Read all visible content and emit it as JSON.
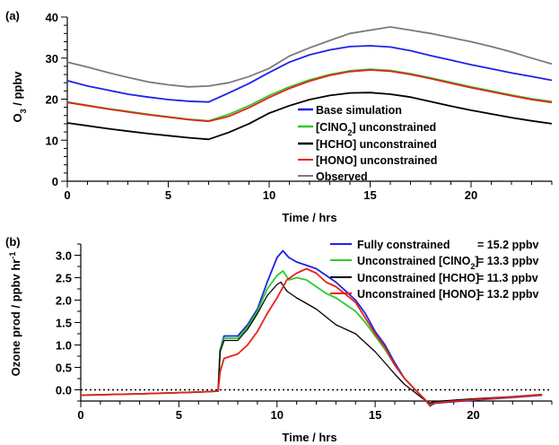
{
  "panels": {
    "a": {
      "label": "(a)"
    },
    "b": {
      "label": "(b)"
    }
  },
  "chart_data": [
    {
      "type": "line",
      "panel_label": "(a)",
      "xlabel": "Time / hrs",
      "ylabel_parts": {
        "base": "O",
        "sub": "3",
        "rest": " / ppbv"
      },
      "xlim": [
        0,
        24
      ],
      "ylim": [
        0,
        40
      ],
      "xticks": [
        0,
        5,
        10,
        15,
        20
      ],
      "yticks": [
        0,
        10,
        20,
        30,
        40
      ],
      "legend_position": "lower-right",
      "grid": false,
      "series": [
        {
          "name": "Base simulation",
          "color": "#1f22e8",
          "points": [
            [
              0,
              24.5
            ],
            [
              1,
              23.2
            ],
            [
              2,
              22.2
            ],
            [
              3,
              21.2
            ],
            [
              4,
              20.5
            ],
            [
              5,
              19.9
            ],
            [
              6,
              19.5
            ],
            [
              7,
              19.3
            ],
            [
              8,
              21.5
            ],
            [
              9,
              23.8
            ],
            [
              10,
              26.5
            ],
            [
              11,
              29
            ],
            [
              12,
              30.8
            ],
            [
              13,
              32
            ],
            [
              14,
              32.8
            ],
            [
              15,
              33
            ],
            [
              16,
              32.7
            ],
            [
              17,
              31.8
            ],
            [
              18,
              30.6
            ],
            [
              19,
              29.5
            ],
            [
              20,
              28.4
            ],
            [
              21,
              27.4
            ],
            [
              22,
              26.4
            ],
            [
              23,
              25.5
            ],
            [
              24,
              24.6
            ]
          ]
        },
        {
          "name_parts": {
            "pre": "[ClNO",
            "sub": "2",
            "post": "] unconstrained"
          },
          "color": "#2ecb2e",
          "points": [
            [
              0,
              19.3
            ],
            [
              1,
              18.5
            ],
            [
              2,
              17.7
            ],
            [
              3,
              17
            ],
            [
              4,
              16.3
            ],
            [
              5,
              15.7
            ],
            [
              6,
              15.1
            ],
            [
              7,
              14.7
            ],
            [
              8,
              16.3
            ],
            [
              9,
              18.4
            ],
            [
              10,
              20.9
            ],
            [
              11,
              23
            ],
            [
              12,
              24.7
            ],
            [
              13,
              26
            ],
            [
              14,
              26.9
            ],
            [
              15,
              27.3
            ],
            [
              16,
              27
            ],
            [
              17,
              26.2
            ],
            [
              18,
              25.2
            ],
            [
              19,
              24.1
            ],
            [
              20,
              23
            ],
            [
              21,
              22
            ],
            [
              22,
              21
            ],
            [
              23,
              20.1
            ],
            [
              24,
              19.4
            ]
          ]
        },
        {
          "name": "[HCHO] unconstrained",
          "color": "#000000",
          "points": [
            [
              0,
              14.2
            ],
            [
              1,
              13.5
            ],
            [
              2,
              12.8
            ],
            [
              3,
              12.2
            ],
            [
              4,
              11.6
            ],
            [
              5,
              11.1
            ],
            [
              6,
              10.6
            ],
            [
              7,
              10.2
            ],
            [
              8,
              11.9
            ],
            [
              9,
              14
            ],
            [
              10,
              16.6
            ],
            [
              11,
              18.4
            ],
            [
              12,
              19.9
            ],
            [
              13,
              20.9
            ],
            [
              14,
              21.5
            ],
            [
              15,
              21.6
            ],
            [
              16,
              21.2
            ],
            [
              17,
              20.5
            ],
            [
              18,
              19.4
            ],
            [
              19,
              18.3
            ],
            [
              20,
              17.3
            ],
            [
              21,
              16.4
            ],
            [
              22,
              15.5
            ],
            [
              23,
              14.7
            ],
            [
              24,
              14
            ]
          ]
        },
        {
          "name": "[HONO] unconstrained",
          "color": "#e8211b",
          "points": [
            [
              0,
              19.2
            ],
            [
              1,
              18.4
            ],
            [
              2,
              17.6
            ],
            [
              3,
              16.9
            ],
            [
              4,
              16.2
            ],
            [
              5,
              15.6
            ],
            [
              6,
              15
            ],
            [
              7,
              14.6
            ],
            [
              8,
              15.8
            ],
            [
              9,
              17.9
            ],
            [
              10,
              20.4
            ],
            [
              11,
              22.6
            ],
            [
              12,
              24.4
            ],
            [
              13,
              25.8
            ],
            [
              14,
              26.7
            ],
            [
              15,
              27.1
            ],
            [
              16,
              26.8
            ],
            [
              17,
              26
            ],
            [
              18,
              25
            ],
            [
              19,
              23.9
            ],
            [
              20,
              22.8
            ],
            [
              21,
              21.8
            ],
            [
              22,
              20.8
            ],
            [
              23,
              19.9
            ],
            [
              24,
              19.2
            ]
          ]
        },
        {
          "name": "Observed",
          "color": "#7a7a7a",
          "points": [
            [
              0,
              29
            ],
            [
              1,
              27.8
            ],
            [
              2,
              26.5
            ],
            [
              3,
              25.3
            ],
            [
              4,
              24.2
            ],
            [
              5,
              23.5
            ],
            [
              6,
              23
            ],
            [
              7,
              23.2
            ],
            [
              8,
              24
            ],
            [
              9,
              25.5
            ],
            [
              10,
              27.5
            ],
            [
              11,
              30.5
            ],
            [
              12,
              32.5
            ],
            [
              13,
              34.3
            ],
            [
              14,
              36
            ],
            [
              15,
              36.8
            ],
            [
              16,
              37.6
            ],
            [
              17,
              36.8
            ],
            [
              18,
              36
            ],
            [
              19,
              35
            ],
            [
              20,
              34
            ],
            [
              21,
              32.8
            ],
            [
              22,
              31.5
            ],
            [
              23,
              30
            ],
            [
              24,
              28.6
            ]
          ]
        }
      ]
    },
    {
      "type": "line",
      "panel_label": "(b)",
      "xlabel": "Time / hrs",
      "ylabel_parts": {
        "base": "Ozone prod / ppbv hr",
        "sup": "-1"
      },
      "xlim": [
        0,
        24
      ],
      "ylim": [
        -0.25,
        3.25
      ],
      "xticks": [
        0,
        5,
        10,
        15,
        20
      ],
      "yticks": [
        0.0,
        0.5,
        1.0,
        1.5,
        2.0,
        2.5,
        3.0
      ],
      "ytick_labels": [
        "0.0",
        "0.5",
        "1.0",
        "1.5",
        "2.0",
        "2.5",
        "3.0"
      ],
      "zero_line": "dotted",
      "legend_position": "top-right",
      "grid": false,
      "series": [
        {
          "name": "Fully constrained",
          "value_label": "= 15.2 ppbv",
          "color": "#1f22e8",
          "points": [
            [
              0,
              -0.12
            ],
            [
              3,
              -0.09
            ],
            [
              6,
              -0.05
            ],
            [
              7,
              -0.03
            ],
            [
              7.1,
              0.9
            ],
            [
              7.3,
              1.2
            ],
            [
              8,
              1.2
            ],
            [
              8.5,
              1.45
            ],
            [
              9,
              1.8
            ],
            [
              9.5,
              2.4
            ],
            [
              10,
              2.95
            ],
            [
              10.3,
              3.1
            ],
            [
              10.6,
              2.95
            ],
            [
              11,
              2.85
            ],
            [
              12,
              2.7
            ],
            [
              12.5,
              2.55
            ],
            [
              13,
              2.4
            ],
            [
              14,
              2.0
            ],
            [
              14.5,
              1.7
            ],
            [
              15,
              1.3
            ],
            [
              15.5,
              1.0
            ],
            [
              16,
              0.6
            ],
            [
              16.5,
              0.25
            ],
            [
              17,
              0.02
            ],
            [
              17.5,
              -0.2
            ],
            [
              17.8,
              -0.36
            ],
            [
              18,
              -0.3
            ],
            [
              20,
              -0.23
            ],
            [
              22,
              -0.17
            ],
            [
              23.5,
              -0.12
            ]
          ]
        },
        {
          "name_parts": {
            "pre": "Unconstrained [ClNO",
            "sub": "2",
            "post": "]"
          },
          "value_label": "= 13.3 ppbv",
          "color": "#2ecb2e",
          "points": [
            [
              0,
              -0.12
            ],
            [
              3,
              -0.09
            ],
            [
              6,
              -0.05
            ],
            [
              7,
              -0.03
            ],
            [
              7.1,
              0.9
            ],
            [
              7.3,
              1.15
            ],
            [
              8,
              1.15
            ],
            [
              8.5,
              1.4
            ],
            [
              9,
              1.75
            ],
            [
              9.5,
              2.25
            ],
            [
              10,
              2.55
            ],
            [
              10.3,
              2.65
            ],
            [
              10.6,
              2.45
            ],
            [
              11,
              2.5
            ],
            [
              11.5,
              2.45
            ],
            [
              12,
              2.3
            ],
            [
              12.5,
              2.15
            ],
            [
              13,
              2.05
            ],
            [
              14,
              1.75
            ],
            [
              14.5,
              1.5
            ],
            [
              15,
              1.2
            ],
            [
              15.5,
              0.9
            ],
            [
              16,
              0.55
            ],
            [
              16.5,
              0.25
            ],
            [
              17,
              0.02
            ],
            [
              17.5,
              -0.2
            ],
            [
              17.8,
              -0.33
            ],
            [
              18,
              -0.28
            ],
            [
              20,
              -0.22
            ],
            [
              22,
              -0.16
            ],
            [
              23.5,
              -0.11
            ]
          ]
        },
        {
          "name": "Unconstrained [HCHO]",
          "value_label": "= 11.3 ppbv",
          "color": "#000000",
          "points": [
            [
              0,
              -0.12
            ],
            [
              3,
              -0.09
            ],
            [
              6,
              -0.05
            ],
            [
              7,
              -0.03
            ],
            [
              7.1,
              0.85
            ],
            [
              7.3,
              1.1
            ],
            [
              8,
              1.1
            ],
            [
              8.5,
              1.35
            ],
            [
              9,
              1.7
            ],
            [
              9.5,
              2.1
            ],
            [
              10,
              2.35
            ],
            [
              10.2,
              2.4
            ],
            [
              10.5,
              2.2
            ],
            [
              11,
              2.05
            ],
            [
              12,
              1.8
            ],
            [
              13,
              1.45
            ],
            [
              14,
              1.25
            ],
            [
              14.5,
              1.05
            ],
            [
              15,
              0.85
            ],
            [
              15.5,
              0.6
            ],
            [
              16,
              0.35
            ],
            [
              16.5,
              0.12
            ],
            [
              17,
              -0.05
            ],
            [
              17.5,
              -0.22
            ],
            [
              17.8,
              -0.3
            ],
            [
              18,
              -0.26
            ],
            [
              20,
              -0.2
            ],
            [
              22,
              -0.15
            ],
            [
              23.5,
              -0.1
            ]
          ]
        },
        {
          "name": "Unconstrained [HONO]",
          "value_label": "= 13.2 ppbv",
          "color": "#e8211b",
          "points": [
            [
              0,
              -0.12
            ],
            [
              3,
              -0.09
            ],
            [
              6,
              -0.05
            ],
            [
              7,
              -0.03
            ],
            [
              7.1,
              0.4
            ],
            [
              7.3,
              0.7
            ],
            [
              8,
              0.8
            ],
            [
              8.5,
              1.0
            ],
            [
              9,
              1.3
            ],
            [
              9.5,
              1.7
            ],
            [
              10,
              2.05
            ],
            [
              10.5,
              2.45
            ],
            [
              11,
              2.6
            ],
            [
              11.5,
              2.7
            ],
            [
              12,
              2.6
            ],
            [
              12.5,
              2.4
            ],
            [
              13,
              2.3
            ],
            [
              14,
              1.95
            ],
            [
              14.5,
              1.6
            ],
            [
              15,
              1.25
            ],
            [
              15.5,
              0.95
            ],
            [
              16,
              0.55
            ],
            [
              16.5,
              0.25
            ],
            [
              17,
              0.02
            ],
            [
              17.5,
              -0.2
            ],
            [
              17.8,
              -0.35
            ],
            [
              18,
              -0.29
            ],
            [
              20,
              -0.22
            ],
            [
              22,
              -0.16
            ],
            [
              23.5,
              -0.11
            ]
          ]
        }
      ]
    }
  ]
}
